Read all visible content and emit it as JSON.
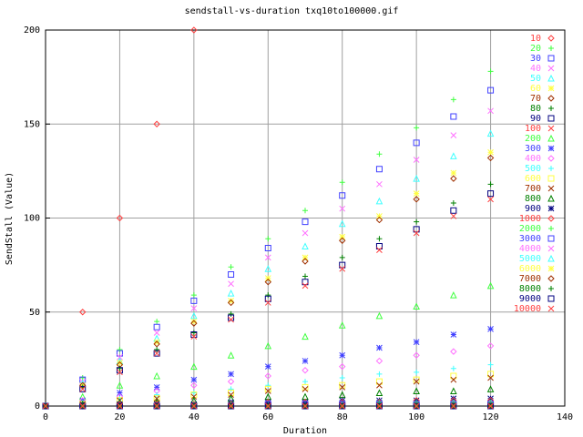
{
  "chart_data": {
    "type": "scatter",
    "title": "sendstall-vs-duration txq10to100000.gif",
    "x_label": "Duration",
    "y_label": "SendStall (Value)",
    "xlim": [
      0,
      140
    ],
    "xticks": [
      0,
      20,
      40,
      60,
      80,
      100,
      120,
      140
    ],
    "ylim": [
      0,
      200
    ],
    "yticks": [
      0,
      50,
      100,
      150,
      200
    ],
    "grid": true,
    "legend": "right",
    "x": [
      0,
      10,
      20,
      30,
      40,
      50,
      60,
      70,
      80,
      90,
      100,
      110,
      120
    ],
    "series": [
      {
        "name": "10",
        "color": "#ff4040",
        "values": [
          0,
          50,
          100,
          150,
          200,
          null,
          null,
          null,
          null,
          null,
          null,
          null,
          null
        ]
      },
      {
        "name": "20",
        "color": "#40ff40",
        "values": [
          0,
          15,
          30,
          45,
          59,
          74,
          89,
          104,
          119,
          134,
          148,
          163,
          178
        ]
      },
      {
        "name": "30",
        "color": "#4040ff",
        "values": [
          0,
          14,
          28,
          42,
          56,
          70,
          84,
          98,
          112,
          126,
          140,
          154,
          168
        ]
      },
      {
        "name": "40",
        "color": "#ff70ff",
        "values": [
          0,
          13,
          26,
          39,
          52,
          65,
          79,
          92,
          105,
          118,
          131,
          144,
          157
        ]
      },
      {
        "name": "50",
        "color": "#40ffff",
        "values": [
          0,
          12,
          24,
          36,
          48,
          60,
          73,
          85,
          97,
          109,
          121,
          133,
          145
        ]
      },
      {
        "name": "60",
        "color": "#ffff40",
        "values": [
          0,
          11,
          23,
          34,
          45,
          56,
          68,
          79,
          90,
          101,
          113,
          124,
          135
        ]
      },
      {
        "name": "70",
        "color": "#a03000",
        "values": [
          0,
          11,
          22,
          33,
          44,
          55,
          66,
          77,
          88,
          99,
          110,
          121,
          132
        ]
      },
      {
        "name": "80",
        "color": "#008000",
        "values": [
          0,
          10,
          20,
          30,
          39,
          49,
          59,
          69,
          79,
          89,
          98,
          108,
          118
        ]
      },
      {
        "name": "90",
        "color": "#000080",
        "values": [
          0,
          9,
          19,
          28,
          38,
          47,
          57,
          66,
          75,
          85,
          94,
          104,
          113
        ]
      },
      {
        "name": "100",
        "color": "#ff4040",
        "values": [
          0,
          9,
          18,
          28,
          37,
          46,
          55,
          64,
          73,
          83,
          92,
          101,
          110
        ]
      },
      {
        "name": "200",
        "color": "#40ff40",
        "values": [
          0,
          5,
          11,
          16,
          21,
          27,
          32,
          37,
          43,
          48,
          53,
          59,
          64
        ]
      },
      {
        "name": "300",
        "color": "#4040ff",
        "values": [
          0,
          3,
          7,
          10,
          14,
          17,
          21,
          24,
          27,
          31,
          34,
          38,
          41
        ]
      },
      {
        "name": "400",
        "color": "#ff70ff",
        "values": [
          0,
          3,
          5,
          8,
          11,
          13,
          16,
          19,
          21,
          24,
          27,
          29,
          32
        ]
      },
      {
        "name": "500",
        "color": "#40ffff",
        "values": [
          0,
          2,
          4,
          6,
          7,
          9,
          11,
          13,
          15,
          17,
          18,
          20,
          22
        ]
      },
      {
        "name": "600",
        "color": "#ffff40",
        "values": [
          0,
          1,
          3,
          4,
          6,
          7,
          9,
          10,
          11,
          13,
          14,
          16,
          17
        ]
      },
      {
        "name": "700",
        "color": "#a03000",
        "values": [
          0,
          1,
          3,
          4,
          5,
          6,
          8,
          9,
          10,
          11,
          13,
          14,
          15
        ]
      },
      {
        "name": "800",
        "color": "#008000",
        "values": [
          0,
          1,
          2,
          2,
          3,
          4,
          5,
          5,
          6,
          7,
          8,
          8,
          9
        ]
      },
      {
        "name": "900",
        "color": "#000080",
        "values": [
          0,
          0,
          1,
          1,
          1,
          2,
          2,
          2,
          3,
          3,
          3,
          4,
          4
        ]
      },
      {
        "name": "1000",
        "color": "#ff4040",
        "values": [
          0,
          0,
          1,
          1,
          1,
          1,
          2,
          2,
          2,
          2,
          3,
          3,
          3
        ]
      },
      {
        "name": "2000",
        "color": "#40ff40",
        "values": [
          0,
          0,
          0,
          0,
          1,
          1,
          1,
          1,
          1,
          2,
          2,
          2,
          2
        ]
      },
      {
        "name": "3000",
        "color": "#4040ff",
        "values": [
          0,
          0,
          0,
          0,
          0,
          0,
          1,
          1,
          1,
          1,
          1,
          1,
          1
        ]
      },
      {
        "name": "4000",
        "color": "#ff70ff",
        "values": [
          0,
          0,
          0,
          0,
          0,
          0,
          0,
          0,
          0,
          0,
          0,
          0,
          0
        ]
      },
      {
        "name": "5000",
        "color": "#40ffff",
        "values": [
          0,
          0,
          0,
          0,
          0,
          0,
          0,
          0,
          0,
          0,
          0,
          0,
          0
        ]
      },
      {
        "name": "6000",
        "color": "#ffff40",
        "values": [
          0,
          0,
          0,
          0,
          0,
          0,
          0,
          0,
          0,
          0,
          0,
          0,
          0
        ]
      },
      {
        "name": "7000",
        "color": "#a03000",
        "values": [
          0,
          0,
          0,
          0,
          0,
          0,
          0,
          0,
          0,
          0,
          0,
          0,
          0
        ]
      },
      {
        "name": "8000",
        "color": "#008000",
        "values": [
          0,
          0,
          0,
          0,
          0,
          0,
          0,
          0,
          0,
          0,
          0,
          0,
          0
        ]
      },
      {
        "name": "9000",
        "color": "#000080",
        "values": [
          0,
          0,
          0,
          0,
          0,
          0,
          0,
          0,
          0,
          0,
          0,
          0,
          0
        ]
      },
      {
        "name": "10000",
        "color": "#ff4040",
        "values": [
          0,
          0,
          0,
          0,
          0,
          0,
          0,
          0,
          0,
          0,
          0,
          0,
          0
        ]
      }
    ]
  }
}
